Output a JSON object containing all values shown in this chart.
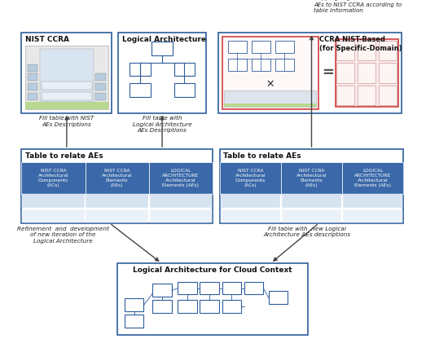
{
  "bg_color": "#ffffff",
  "box_border_color": "#2E5D9C",
  "table_header_color": "#3A68A8",
  "table_row1_color": "#D6E4F2",
  "table_row2_color": "#EBF1F8",
  "red_border": "#D04040",
  "arrow_color": "#444444",
  "italic_color": "#222222",
  "col_headers": [
    "NIST CCRA\nArchitectural\nComponents\n(ACs)",
    "NIST CCRA\nArchitectural\nElements\n(AEs)",
    "LOGICAL\nARCHITECTURE\nArchitectural\nElements (AEs)"
  ]
}
